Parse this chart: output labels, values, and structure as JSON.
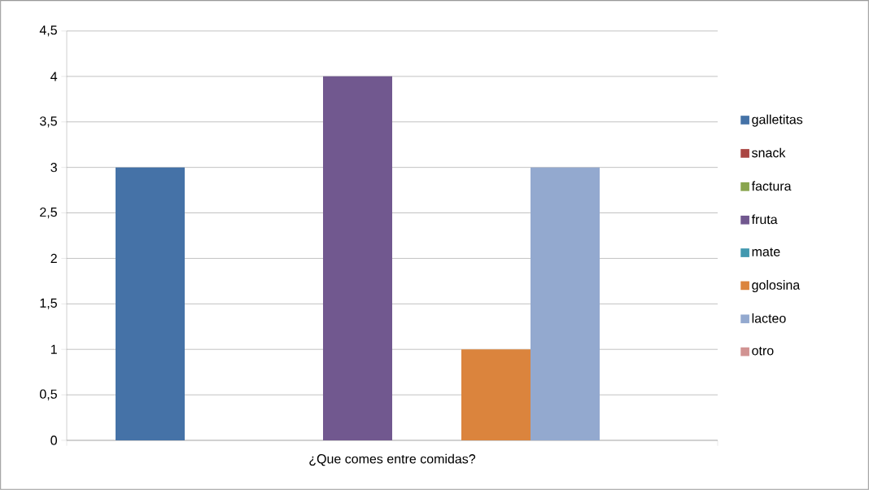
{
  "chart_data": {
    "type": "bar",
    "categories": [
      "¿Que comes entre comidas?"
    ],
    "series": [
      {
        "name": "galletitas",
        "color": "#4572a7",
        "values": [
          3
        ]
      },
      {
        "name": "snack",
        "color": "#aa4643",
        "values": [
          0
        ]
      },
      {
        "name": "factura",
        "color": "#89a54e",
        "values": [
          0
        ]
      },
      {
        "name": "fruta",
        "color": "#71588f",
        "values": [
          4
        ]
      },
      {
        "name": "mate",
        "color": "#4198af",
        "values": [
          0
        ]
      },
      {
        "name": "golosina",
        "color": "#db843d",
        "values": [
          1
        ]
      },
      {
        "name": "lacteo",
        "color": "#93a9cf",
        "values": [
          3
        ]
      },
      {
        "name": "otro",
        "color": "#d19392",
        "values": [
          0
        ]
      }
    ],
    "ylim": [
      0,
      4.5
    ],
    "yticks": [
      0,
      {
        "value": 0.5,
        "label": "0,5"
      },
      1,
      {
        "value": 1.5,
        "label": "1,5"
      },
      2,
      {
        "value": 2.5,
        "label": "2,5"
      },
      3,
      {
        "value": 3.5,
        "label": "3,5"
      },
      4,
      {
        "value": 4.5,
        "label": "4,5"
      }
    ],
    "grid": "y",
    "legend": "right"
  }
}
